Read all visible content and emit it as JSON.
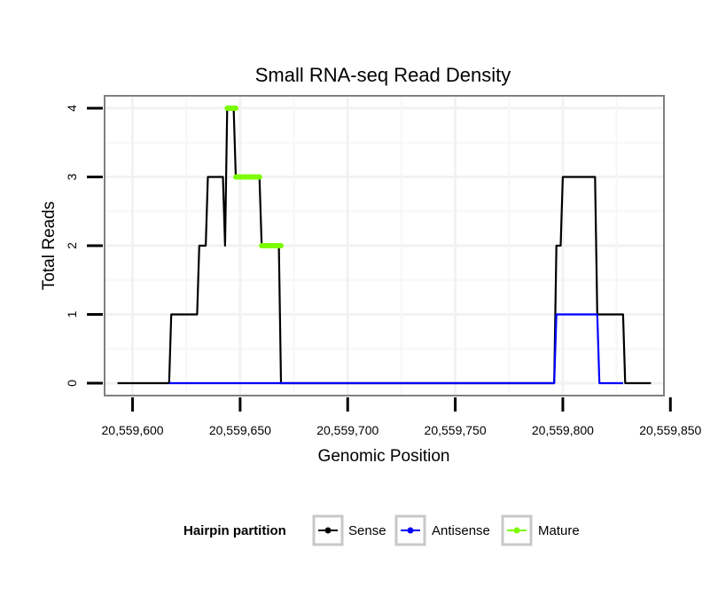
{
  "chart_data": {
    "type": "line",
    "title": "Small RNA-seq Read Density",
    "xlabel": "Genomic Position",
    "ylabel": "Total Reads",
    "xlim": [
      20559587,
      20559847
    ],
    "ylim": [
      -0.18,
      4.18
    ],
    "x_ticks": [
      20559600,
      20559650,
      20559700,
      20559750,
      20559800,
      20559850
    ],
    "x_tick_labels": [
      "20,559,600",
      "20,559,650",
      "20,559,700",
      "20,559,750",
      "20,559,800",
      "20,559,850"
    ],
    "y_ticks": [
      0,
      1,
      2,
      3,
      4
    ],
    "y_tick_labels": [
      "0",
      "1",
      "2",
      "3",
      "4"
    ],
    "grid": true,
    "legend": {
      "title": "Hairpin partition",
      "position": "bottom",
      "entries": [
        {
          "name": "Sense",
          "color": "#000000"
        },
        {
          "name": "Antisense",
          "color": "#0000ff"
        },
        {
          "name": "Mature",
          "color": "#7cfc00"
        }
      ]
    },
    "series": [
      {
        "name": "Sense",
        "color": "#000000",
        "points": [
          [
            20559593,
            0
          ],
          [
            20559617,
            0
          ],
          [
            20559618,
            1
          ],
          [
            20559630,
            1
          ],
          [
            20559631,
            2
          ],
          [
            20559634,
            2
          ],
          [
            20559635,
            3
          ],
          [
            20559642,
            3
          ],
          [
            20559643,
            2
          ],
          [
            20559644,
            4
          ],
          [
            20559647,
            4
          ],
          [
            20559648,
            3
          ],
          [
            20559659,
            3
          ],
          [
            20559660,
            2
          ],
          [
            20559668,
            2
          ],
          [
            20559669,
            0
          ],
          [
            20559796,
            0
          ],
          [
            20559797,
            2
          ],
          [
            20559799,
            2
          ],
          [
            20559800,
            3
          ],
          [
            20559815,
            3
          ],
          [
            20559816,
            1
          ],
          [
            20559824,
            1
          ],
          [
            20559825,
            1
          ],
          [
            20559828,
            1
          ],
          [
            20559829,
            0
          ],
          [
            20559841,
            0
          ]
        ]
      },
      {
        "name": "Antisense",
        "color": "#0000ff",
        "points": [
          [
            20559617,
            0
          ],
          [
            20559796,
            0
          ],
          [
            20559797,
            1
          ],
          [
            20559816,
            1
          ],
          [
            20559817,
            0
          ],
          [
            20559828,
            0
          ]
        ]
      },
      {
        "name": "Mature",
        "color": "#7cfc00",
        "segments": [
          {
            "x_start": 20559644,
            "x_end": 20559648,
            "y": 4
          },
          {
            "x_start": 20559648,
            "x_end": 20559659,
            "y": 3
          },
          {
            "x_start": 20559660,
            "x_end": 20559669,
            "y": 2
          }
        ]
      }
    ]
  }
}
